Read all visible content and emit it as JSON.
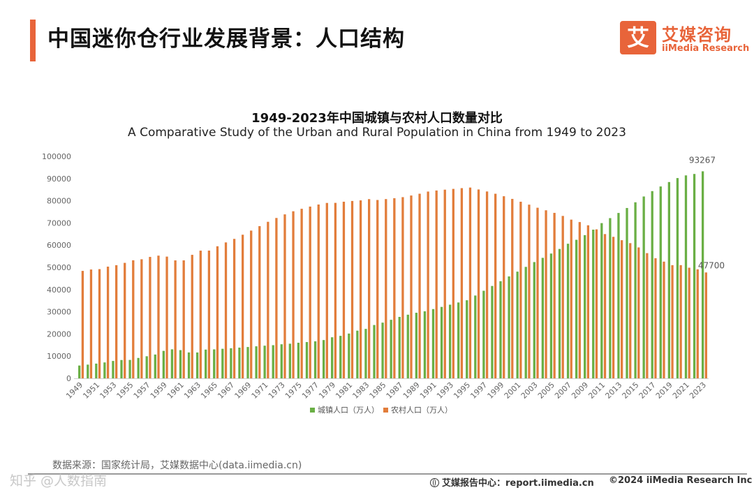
{
  "header": {
    "title": "中国迷你仓行业发展背景：人口结构",
    "logo_mark": "艾",
    "logo_cn": "艾媒咨询",
    "logo_en": "iiMedia Research"
  },
  "colors": {
    "accent": "#e8643a",
    "urban": "#6aaf45",
    "rural": "#e27d3b"
  },
  "chart_data": {
    "type": "bar",
    "title": "1949-2023年中国城镇与农村人口数量对比",
    "subtitle": "A Comparative Study of the Urban and Rural Population in China from 1949 to 2023",
    "xlabel": "",
    "ylabel": "",
    "ylim": [
      0,
      100000
    ],
    "yticks": [
      0,
      10000,
      20000,
      30000,
      40000,
      50000,
      60000,
      70000,
      80000,
      90000,
      100000
    ],
    "xtick_labels": [
      "1949",
      "1951",
      "1953",
      "1955",
      "1957",
      "1959",
      "1961",
      "1963",
      "1965",
      "1967",
      "1969",
      "1971",
      "1973",
      "1975",
      "1977",
      "1979",
      "1981",
      "1983",
      "1985",
      "1987",
      "1989",
      "1991",
      "1993",
      "1995",
      "1997",
      "1999",
      "2001",
      "2003",
      "2005",
      "2007",
      "2009",
      "2011",
      "2013",
      "2015",
      "2017",
      "2019",
      "2021",
      "2023"
    ],
    "categories": [
      "1949",
      "1950",
      "1951",
      "1952",
      "1953",
      "1954",
      "1955",
      "1956",
      "1957",
      "1958",
      "1959",
      "1960",
      "1961",
      "1962",
      "1963",
      "1964",
      "1965",
      "1966",
      "1967",
      "1968",
      "1969",
      "1970",
      "1971",
      "1972",
      "1973",
      "1974",
      "1975",
      "1976",
      "1977",
      "1978",
      "1979",
      "1980",
      "1981",
      "1982",
      "1983",
      "1984",
      "1985",
      "1986",
      "1987",
      "1988",
      "1989",
      "1990",
      "1991",
      "1992",
      "1993",
      "1994",
      "1995",
      "1996",
      "1997",
      "1998",
      "1999",
      "2000",
      "2001",
      "2002",
      "2003",
      "2004",
      "2005",
      "2006",
      "2007",
      "2008",
      "2009",
      "2010",
      "2011",
      "2012",
      "2013",
      "2014",
      "2015",
      "2016",
      "2017",
      "2018",
      "2019",
      "2020",
      "2021",
      "2022",
      "2023"
    ],
    "series": [
      {
        "name": "城镇人口（万人）",
        "color": "#6aaf45",
        "values": [
          5765,
          6169,
          6632,
          7163,
          7826,
          8249,
          8285,
          9185,
          9949,
          10721,
          12371,
          13073,
          12707,
          11659,
          11646,
          12950,
          13045,
          13313,
          13548,
          13838,
          14117,
          14424,
          14711,
          14935,
          15345,
          15595,
          16030,
          16341,
          16669,
          17245,
          18495,
          19140,
          20171,
          21480,
          22274,
          24017,
          25094,
          26366,
          27674,
          28661,
          29540,
          30195,
          31203,
          32175,
          33173,
          34169,
          35174,
          37304,
          39449,
          41608,
          43748,
          45906,
          48064,
          50212,
          52376,
          54283,
          56212,
          58288,
          60633,
          62403,
          64512,
          66978,
          69927,
          72175,
          74502,
          76738,
          79302,
          81924,
          84343,
          86433,
          88426,
          90220,
          91425,
          92071,
          93267
        ],
        "end_label": "93267"
      },
      {
        "name": "农村人口（万人）",
        "color": "#e27d3b",
        "values": [
          48402,
          49027,
          49191,
          50319,
          50970,
          52017,
          53180,
          53643,
          54704,
          55273,
          54836,
          53134,
          53152,
          55636,
          57526,
          57549,
          59493,
          61229,
          62820,
          64696,
          66554,
          68568,
          70518,
          72242,
          73866,
          75264,
          76390,
          77376,
          78305,
          79014,
          79047,
          79565,
          79901,
          80174,
          80734,
          80340,
          80757,
          81141,
          81626,
          82365,
          83164,
          84138,
          84620,
          84996,
          85344,
          85681,
          85947,
          85085,
          84177,
          83153,
          82038,
          80837,
          79563,
          78241,
          76851,
          75705,
          74544,
          73160,
          71496,
          70399,
          68938,
          67113,
          64989,
          63747,
          62224,
          60908,
          58973,
          56401,
          54108,
          52576,
          50979,
          50992,
          49835,
          49104,
          47700
        ],
        "end_label": "47700"
      }
    ],
    "legend": [
      "城镇人口（万人）",
      "农村人口（万人）"
    ],
    "legend_position": "bottom",
    "grid": false
  },
  "footer": {
    "source": "数据来源：国家统计局，艾媒数据中心(data.iimedia.cn)",
    "center": "艾媒报告中心：report.iimedia.cn",
    "right": "©2024  iiMedia Research  Inc",
    "watermark": "知乎 @人数指南"
  }
}
